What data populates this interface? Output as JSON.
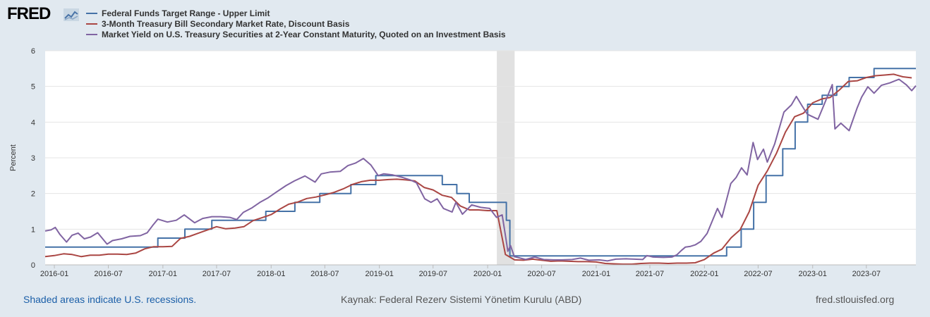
{
  "header": {
    "logo_text": "FRED",
    "logo_icon": "line-chart-icon"
  },
  "colors": {
    "background": "#e1e9f0",
    "plot_background": "#ffffff",
    "gridline": "#e5e5e5",
    "recession_shade": "#e1e1e1"
  },
  "footer": {
    "recession_note": "Shaded areas indicate U.S. recessions.",
    "source": "Kaynak: Federal Rezerv Sistemi Yönetim Kurulu (ABD)",
    "site": "fred.stlouisfed.org"
  },
  "chart_data": {
    "type": "line",
    "title": "",
    "xlabel": "",
    "ylabel": "Percent",
    "ylim": [
      0,
      6
    ],
    "yticks": [
      0,
      1,
      2,
      3,
      4,
      5,
      6
    ],
    "xlim": [
      "2015-12-01",
      "2023-12-15"
    ],
    "xticks": [
      "2016-01",
      "2016-07",
      "2017-01",
      "2017-07",
      "2018-01",
      "2018-07",
      "2019-01",
      "2019-07",
      "2020-01",
      "2020-07",
      "2021-01",
      "2021-07",
      "2022-01",
      "2022-07",
      "2023-01",
      "2023-07"
    ],
    "grid": true,
    "legend_position": "top-left",
    "recessions": [
      [
        "2020-02",
        "2020-04"
      ]
    ],
    "series": [
      {
        "name": "Federal Funds Target Range - Upper Limit",
        "color": "#4572a7",
        "step": true,
        "points": [
          [
            "2015-12-01",
            0.5
          ],
          [
            "2016-12-15",
            0.75
          ],
          [
            "2017-03-16",
            1.0
          ],
          [
            "2017-06-15",
            1.25
          ],
          [
            "2017-12-14",
            1.5
          ],
          [
            "2018-03-22",
            1.75
          ],
          [
            "2018-06-14",
            2.0
          ],
          [
            "2018-09-27",
            2.25
          ],
          [
            "2018-12-20",
            2.5
          ],
          [
            "2019-08-01",
            2.25
          ],
          [
            "2019-09-19",
            2.0
          ],
          [
            "2019-10-31",
            1.75
          ],
          [
            "2020-03-04",
            1.25
          ],
          [
            "2020-03-16",
            0.25
          ],
          [
            "2022-03-17",
            0.5
          ],
          [
            "2022-05-05",
            1.0
          ],
          [
            "2022-06-16",
            1.75
          ],
          [
            "2022-07-28",
            2.5
          ],
          [
            "2022-09-22",
            3.25
          ],
          [
            "2022-11-03",
            4.0
          ],
          [
            "2022-12-15",
            4.5
          ],
          [
            "2023-02-02",
            4.75
          ],
          [
            "2023-03-23",
            5.0
          ],
          [
            "2023-05-04",
            5.25
          ],
          [
            "2023-07-27",
            5.5
          ],
          [
            "2023-12-15",
            5.5
          ]
        ]
      },
      {
        "name": "3-Month Treasury Bill Secondary Market Rate, Discount Basis",
        "color": "#aa4643",
        "step": false,
        "points": [
          [
            "2015-12-01",
            0.23
          ],
          [
            "2016-01-01",
            0.26
          ],
          [
            "2016-02-01",
            0.31
          ],
          [
            "2016-03-01",
            0.29
          ],
          [
            "2016-04-01",
            0.23
          ],
          [
            "2016-05-01",
            0.27
          ],
          [
            "2016-06-01",
            0.27
          ],
          [
            "2016-07-01",
            0.3
          ],
          [
            "2016-08-01",
            0.3
          ],
          [
            "2016-09-01",
            0.29
          ],
          [
            "2016-10-01",
            0.33
          ],
          [
            "2016-11-01",
            0.45
          ],
          [
            "2016-12-01",
            0.51
          ],
          [
            "2017-01-01",
            0.51
          ],
          [
            "2017-02-01",
            0.52
          ],
          [
            "2017-03-01",
            0.74
          ],
          [
            "2017-04-01",
            0.8
          ],
          [
            "2017-05-01",
            0.89
          ],
          [
            "2017-06-01",
            0.98
          ],
          [
            "2017-07-01",
            1.07
          ],
          [
            "2017-08-01",
            1.01
          ],
          [
            "2017-09-01",
            1.03
          ],
          [
            "2017-10-01",
            1.07
          ],
          [
            "2017-11-01",
            1.24
          ],
          [
            "2017-12-01",
            1.32
          ],
          [
            "2018-01-01",
            1.41
          ],
          [
            "2018-02-01",
            1.57
          ],
          [
            "2018-03-01",
            1.7
          ],
          [
            "2018-04-01",
            1.76
          ],
          [
            "2018-05-01",
            1.86
          ],
          [
            "2018-06-01",
            1.9
          ],
          [
            "2018-07-01",
            1.96
          ],
          [
            "2018-08-01",
            2.03
          ],
          [
            "2018-09-01",
            2.13
          ],
          [
            "2018-10-01",
            2.25
          ],
          [
            "2018-11-01",
            2.33
          ],
          [
            "2018-12-01",
            2.37
          ],
          [
            "2019-01-01",
            2.37
          ],
          [
            "2019-02-01",
            2.39
          ],
          [
            "2019-03-01",
            2.4
          ],
          [
            "2019-04-01",
            2.38
          ],
          [
            "2019-05-01",
            2.35
          ],
          [
            "2019-06-01",
            2.17
          ],
          [
            "2019-07-01",
            2.1
          ],
          [
            "2019-08-01",
            1.95
          ],
          [
            "2019-09-01",
            1.89
          ],
          [
            "2019-10-01",
            1.65
          ],
          [
            "2019-11-01",
            1.54
          ],
          [
            "2019-12-01",
            1.54
          ],
          [
            "2020-01-01",
            1.52
          ],
          [
            "2020-02-01",
            1.52
          ],
          [
            "2020-03-01",
            0.29
          ],
          [
            "2020-04-01",
            0.14
          ],
          [
            "2020-05-01",
            0.13
          ],
          [
            "2020-06-01",
            0.16
          ],
          [
            "2020-07-01",
            0.13
          ],
          [
            "2020-08-01",
            0.1
          ],
          [
            "2020-09-01",
            0.11
          ],
          [
            "2020-10-01",
            0.1
          ],
          [
            "2020-11-01",
            0.09
          ],
          [
            "2020-12-01",
            0.09
          ],
          [
            "2021-01-01",
            0.08
          ],
          [
            "2021-02-01",
            0.04
          ],
          [
            "2021-03-01",
            0.03
          ],
          [
            "2021-04-01",
            0.02
          ],
          [
            "2021-05-01",
            0.02
          ],
          [
            "2021-06-01",
            0.04
          ],
          [
            "2021-07-01",
            0.05
          ],
          [
            "2021-08-01",
            0.05
          ],
          [
            "2021-09-01",
            0.04
          ],
          [
            "2021-10-01",
            0.05
          ],
          [
            "2021-11-01",
            0.05
          ],
          [
            "2021-12-01",
            0.06
          ],
          [
            "2022-01-01",
            0.15
          ],
          [
            "2022-02-01",
            0.33
          ],
          [
            "2022-03-01",
            0.44
          ],
          [
            "2022-04-01",
            0.76
          ],
          [
            "2022-05-01",
            0.98
          ],
          [
            "2022-06-01",
            1.49
          ],
          [
            "2022-07-01",
            2.23
          ],
          [
            "2022-08-01",
            2.63
          ],
          [
            "2022-09-01",
            3.13
          ],
          [
            "2022-10-01",
            3.72
          ],
          [
            "2022-11-01",
            4.15
          ],
          [
            "2022-12-01",
            4.25
          ],
          [
            "2023-01-01",
            4.54
          ],
          [
            "2023-02-01",
            4.65
          ],
          [
            "2023-03-01",
            4.69
          ],
          [
            "2023-04-01",
            4.9
          ],
          [
            "2023-05-01",
            5.14
          ],
          [
            "2023-06-01",
            5.16
          ],
          [
            "2023-07-01",
            5.25
          ],
          [
            "2023-08-01",
            5.3
          ],
          [
            "2023-09-01",
            5.32
          ],
          [
            "2023-10-01",
            5.34
          ],
          [
            "2023-11-01",
            5.27
          ],
          [
            "2023-12-01",
            5.24
          ]
        ]
      },
      {
        "name": "Market Yield on U.S. Treasury Securities at 2-Year Constant Maturity, Quoted on an Investment Basis",
        "color": "#8064a2",
        "step": false,
        "points": [
          [
            "2015-12-01",
            0.95
          ],
          [
            "2015-12-21",
            0.98
          ],
          [
            "2016-01-04",
            1.05
          ],
          [
            "2016-01-20",
            0.85
          ],
          [
            "2016-02-11",
            0.64
          ],
          [
            "2016-03-01",
            0.83
          ],
          [
            "2016-03-21",
            0.89
          ],
          [
            "2016-04-11",
            0.73
          ],
          [
            "2016-05-02",
            0.78
          ],
          [
            "2016-05-26",
            0.9
          ],
          [
            "2016-06-27",
            0.58
          ],
          [
            "2016-07-15",
            0.68
          ],
          [
            "2016-08-15",
            0.73
          ],
          [
            "2016-09-12",
            0.8
          ],
          [
            "2016-10-17",
            0.82
          ],
          [
            "2016-11-09",
            0.9
          ],
          [
            "2016-11-28",
            1.11
          ],
          [
            "2016-12-15",
            1.28
          ],
          [
            "2017-01-16",
            1.2
          ],
          [
            "2017-02-15",
            1.25
          ],
          [
            "2017-03-14",
            1.4
          ],
          [
            "2017-04-18",
            1.18
          ],
          [
            "2017-05-15",
            1.3
          ],
          [
            "2017-06-15",
            1.35
          ],
          [
            "2017-07-14",
            1.35
          ],
          [
            "2017-08-15",
            1.33
          ],
          [
            "2017-09-07",
            1.27
          ],
          [
            "2017-09-29",
            1.47
          ],
          [
            "2017-10-27",
            1.59
          ],
          [
            "2017-11-24",
            1.75
          ],
          [
            "2017-12-22",
            1.88
          ],
          [
            "2018-01-19",
            2.04
          ],
          [
            "2018-02-20",
            2.22
          ],
          [
            "2018-03-20",
            2.35
          ],
          [
            "2018-04-25",
            2.49
          ],
          [
            "2018-05-29",
            2.32
          ],
          [
            "2018-06-19",
            2.55
          ],
          [
            "2018-07-18",
            2.6
          ],
          [
            "2018-08-22",
            2.62
          ],
          [
            "2018-09-17",
            2.78
          ],
          [
            "2018-10-12",
            2.85
          ],
          [
            "2018-11-08",
            2.98
          ],
          [
            "2018-12-03",
            2.8
          ],
          [
            "2018-12-28",
            2.5
          ],
          [
            "2019-01-15",
            2.55
          ],
          [
            "2019-02-15",
            2.52
          ],
          [
            "2019-03-20",
            2.45
          ],
          [
            "2019-04-15",
            2.38
          ],
          [
            "2019-05-06",
            2.3
          ],
          [
            "2019-06-03",
            1.85
          ],
          [
            "2019-06-24",
            1.75
          ],
          [
            "2019-07-15",
            1.85
          ],
          [
            "2019-08-05",
            1.58
          ],
          [
            "2019-09-03",
            1.48
          ],
          [
            "2019-09-16",
            1.75
          ],
          [
            "2019-10-08",
            1.42
          ],
          [
            "2019-11-08",
            1.68
          ],
          [
            "2019-12-09",
            1.61
          ],
          [
            "2020-01-08",
            1.58
          ],
          [
            "2020-01-31",
            1.33
          ],
          [
            "2020-02-19",
            1.4
          ],
          [
            "2020-03-03",
            0.72
          ],
          [
            "2020-03-09",
            0.38
          ],
          [
            "2020-03-18",
            0.54
          ],
          [
            "2020-03-31",
            0.23
          ],
          [
            "2020-04-15",
            0.2
          ],
          [
            "2020-05-08",
            0.15
          ],
          [
            "2020-06-08",
            0.22
          ],
          [
            "2020-07-08",
            0.15
          ],
          [
            "2020-08-10",
            0.14
          ],
          [
            "2020-09-08",
            0.14
          ],
          [
            "2020-10-12",
            0.15
          ],
          [
            "2020-11-09",
            0.19
          ],
          [
            "2020-12-07",
            0.13
          ],
          [
            "2021-01-11",
            0.14
          ],
          [
            "2021-02-08",
            0.11
          ],
          [
            "2021-03-08",
            0.16
          ],
          [
            "2021-04-12",
            0.17
          ],
          [
            "2021-05-10",
            0.16
          ],
          [
            "2021-06-07",
            0.15
          ],
          [
            "2021-06-21",
            0.26
          ],
          [
            "2021-07-12",
            0.22
          ],
          [
            "2021-08-16",
            0.21
          ],
          [
            "2021-09-13",
            0.22
          ],
          [
            "2021-09-30",
            0.28
          ],
          [
            "2021-10-15",
            0.4
          ],
          [
            "2021-10-29",
            0.5
          ],
          [
            "2021-11-15",
            0.52
          ],
          [
            "2021-12-01",
            0.56
          ],
          [
            "2021-12-20",
            0.66
          ],
          [
            "2022-01-10",
            0.88
          ],
          [
            "2022-02-14",
            1.58
          ],
          [
            "2022-03-01",
            1.33
          ],
          [
            "2022-03-31",
            2.28
          ],
          [
            "2022-04-18",
            2.45
          ],
          [
            "2022-05-06",
            2.72
          ],
          [
            "2022-05-25",
            2.52
          ],
          [
            "2022-06-14",
            3.43
          ],
          [
            "2022-06-29",
            2.95
          ],
          [
            "2022-07-19",
            3.24
          ],
          [
            "2022-08-01",
            2.88
          ],
          [
            "2022-08-26",
            3.39
          ],
          [
            "2022-09-26",
            4.28
          ],
          [
            "2022-10-21",
            4.48
          ],
          [
            "2022-11-07",
            4.72
          ],
          [
            "2022-11-25",
            4.47
          ],
          [
            "2022-12-14",
            4.22
          ],
          [
            "2023-01-19",
            4.08
          ],
          [
            "2023-02-09",
            4.5
          ],
          [
            "2023-03-08",
            5.05
          ],
          [
            "2023-03-17",
            3.81
          ],
          [
            "2023-04-06",
            3.97
          ],
          [
            "2023-05-04",
            3.76
          ],
          [
            "2023-05-31",
            4.4
          ],
          [
            "2023-06-15",
            4.7
          ],
          [
            "2023-07-06",
            4.99
          ],
          [
            "2023-07-27",
            4.81
          ],
          [
            "2023-08-21",
            5.03
          ],
          [
            "2023-09-19",
            5.1
          ],
          [
            "2023-10-19",
            5.2
          ],
          [
            "2023-11-13",
            5.04
          ],
          [
            "2023-12-01",
            4.88
          ],
          [
            "2023-12-15",
            5.02
          ]
        ]
      }
    ]
  }
}
